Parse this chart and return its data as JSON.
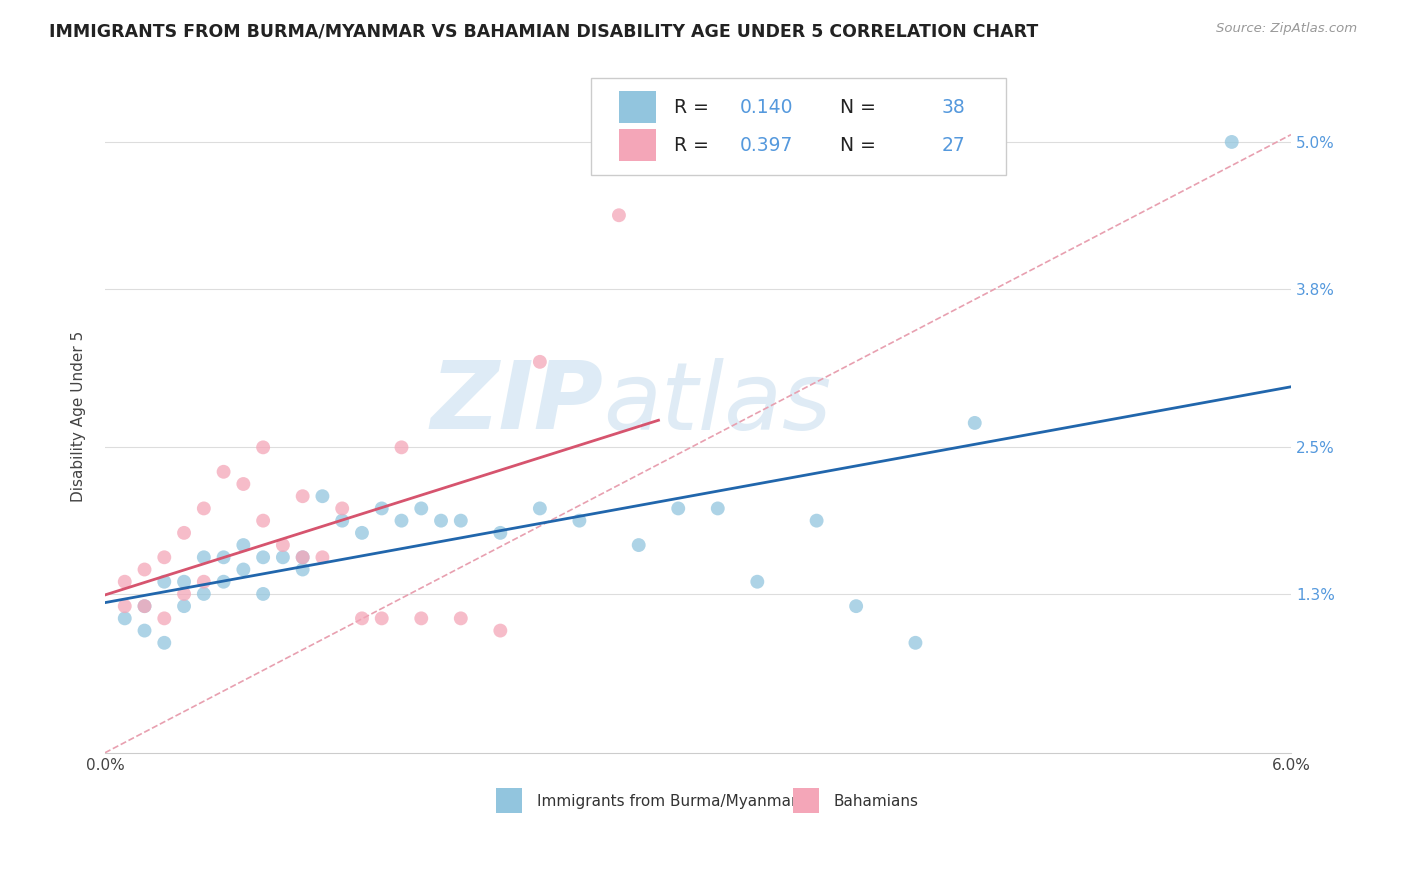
{
  "title": "IMMIGRANTS FROM BURMA/MYANMAR VS BAHAMIAN DISABILITY AGE UNDER 5 CORRELATION CHART",
  "source": "Source: ZipAtlas.com",
  "ylabel": "Disability Age Under 5",
  "xlim": [
    0.0,
    0.06
  ],
  "ylim": [
    0.0,
    0.055
  ],
  "xtick_pos": [
    0.0,
    0.01,
    0.02,
    0.03,
    0.04,
    0.05,
    0.06
  ],
  "xtick_labels": [
    "0.0%",
    "",
    "",
    "",
    "",
    "",
    "6.0%"
  ],
  "ytick_positions": [
    0.013,
    0.025,
    0.038,
    0.05
  ],
  "ytick_labels": [
    "1.3%",
    "2.5%",
    "3.8%",
    "5.0%"
  ],
  "legend_labels": [
    "Immigrants from Burma/Myanmar",
    "Bahamians"
  ],
  "R_blue": 0.14,
  "N_blue": 38,
  "R_pink": 0.397,
  "N_pink": 27,
  "blue_color": "#92c5de",
  "pink_color": "#f4a6b8",
  "blue_line_color": "#2166ac",
  "pink_line_color": "#d6546e",
  "diagonal_color": "#e8a0b0",
  "watermark_zip": "ZIP",
  "watermark_atlas": "atlas",
  "blue_scatter_x": [
    0.001,
    0.002,
    0.002,
    0.003,
    0.003,
    0.004,
    0.004,
    0.005,
    0.005,
    0.006,
    0.006,
    0.007,
    0.007,
    0.008,
    0.008,
    0.009,
    0.01,
    0.01,
    0.011,
    0.012,
    0.013,
    0.014,
    0.015,
    0.016,
    0.017,
    0.018,
    0.02,
    0.022,
    0.024,
    0.027,
    0.029,
    0.031,
    0.033,
    0.036,
    0.038,
    0.041,
    0.044,
    0.057
  ],
  "blue_scatter_y": [
    0.011,
    0.01,
    0.012,
    0.009,
    0.014,
    0.012,
    0.014,
    0.013,
    0.016,
    0.014,
    0.016,
    0.015,
    0.017,
    0.016,
    0.013,
    0.016,
    0.015,
    0.016,
    0.021,
    0.019,
    0.018,
    0.02,
    0.019,
    0.02,
    0.019,
    0.019,
    0.018,
    0.02,
    0.019,
    0.017,
    0.02,
    0.02,
    0.014,
    0.019,
    0.012,
    0.009,
    0.027,
    0.05
  ],
  "pink_scatter_x": [
    0.001,
    0.001,
    0.002,
    0.002,
    0.003,
    0.003,
    0.004,
    0.004,
    0.005,
    0.005,
    0.006,
    0.007,
    0.008,
    0.008,
    0.009,
    0.01,
    0.01,
    0.011,
    0.012,
    0.013,
    0.014,
    0.015,
    0.016,
    0.018,
    0.02,
    0.022,
    0.026
  ],
  "pink_scatter_y": [
    0.012,
    0.014,
    0.012,
    0.015,
    0.011,
    0.016,
    0.013,
    0.018,
    0.014,
    0.02,
    0.023,
    0.022,
    0.019,
    0.025,
    0.017,
    0.021,
    0.016,
    0.016,
    0.02,
    0.011,
    0.011,
    0.025,
    0.011,
    0.011,
    0.01,
    0.032,
    0.044
  ]
}
